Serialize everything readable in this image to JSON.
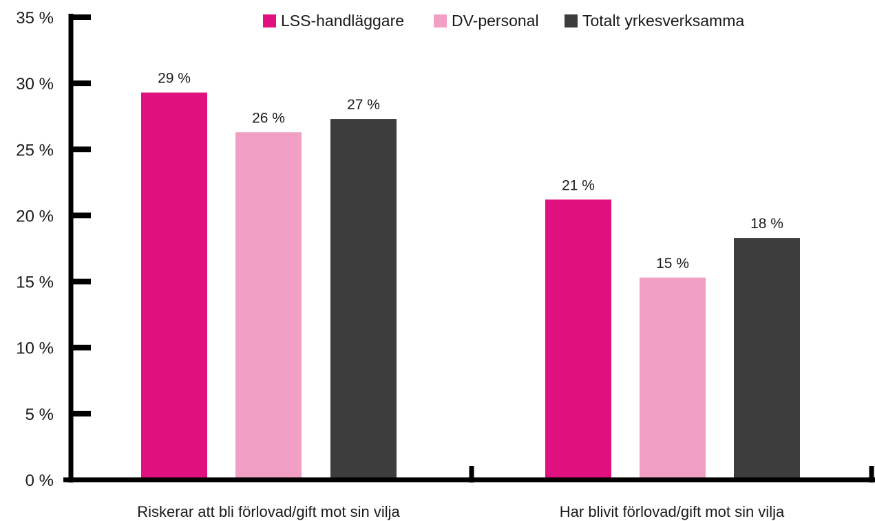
{
  "chart_data": {
    "type": "bar",
    "categories": [
      "Riskerar att bli förlovad/gift mot sin vilja",
      "Har blivit förlovad/gift mot sin vilja"
    ],
    "series": [
      {
        "name": "LSS-handläggare",
        "color": "#e0107e",
        "values": [
          29,
          21
        ],
        "labels": [
          "29 %",
          "21 %"
        ]
      },
      {
        "name": "DV-personal",
        "color": "#f29fc6",
        "values": [
          26,
          15
        ],
        "labels": [
          "26 %",
          "15 %"
        ]
      },
      {
        "name": "Totalt yrkesverksamma",
        "color": "#3d3d3d",
        "values": [
          27,
          18
        ],
        "labels": [
          "27 %",
          "18 %"
        ]
      }
    ],
    "exact_values": [
      [
        29.3,
        21.2
      ],
      [
        26.3,
        15.3
      ],
      [
        27.3,
        18.3
      ]
    ],
    "ylim": [
      0,
      35
    ],
    "yticks": [
      0,
      5,
      10,
      15,
      20,
      25,
      30,
      35
    ],
    "ytick_labels": [
      "0 %",
      "5 %",
      "10 %",
      "15 %",
      "20 %",
      "25 %",
      "30 %",
      "35 %"
    ],
    "legend_position": "top",
    "axis_color": "#000000",
    "grid": false,
    "title": "",
    "xlabel": "",
    "ylabel": ""
  }
}
